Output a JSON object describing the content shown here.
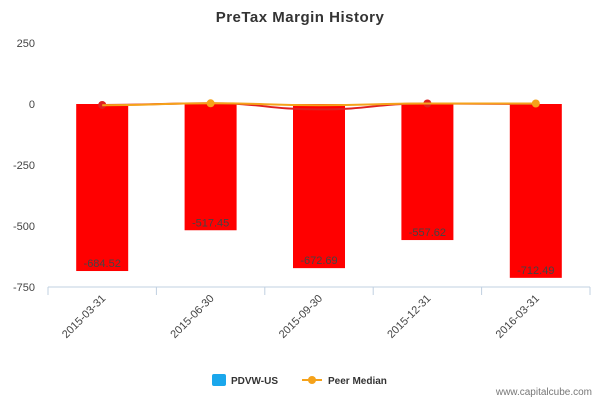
{
  "chart_data": {
    "type": "bar",
    "title": "PreTax Margin History",
    "categories": [
      "2015-03-31",
      "2015-06-30",
      "2015-09-30",
      "2015-12-31",
      "2016-03-31"
    ],
    "ylim": [
      -750,
      250
    ],
    "yticks": [
      250,
      0,
      -250,
      -500,
      -750
    ],
    "grid": false,
    "legend_position": "bottom",
    "series": [
      {
        "name": "PDVW-US",
        "type": "bar",
        "legend_color": "#1aa7ec",
        "bar_color": "#ff0000",
        "values": [
          -684.52,
          -517.45,
          -672.69,
          -557.62,
          -712.49
        ],
        "labels": [
          "-684.52",
          "-517.45",
          "-672.69",
          "-557.62",
          "-712.49"
        ]
      },
      {
        "name": "Peer Median",
        "type": "line",
        "color": "#f5a21a",
        "values": [
          -5,
          3,
          -5,
          2,
          2
        ]
      }
    ],
    "company_line": {
      "color": "#e02020",
      "values": [
        -4,
        3,
        -22,
        2,
        0
      ]
    }
  },
  "credit": "www.capitalcube.com"
}
